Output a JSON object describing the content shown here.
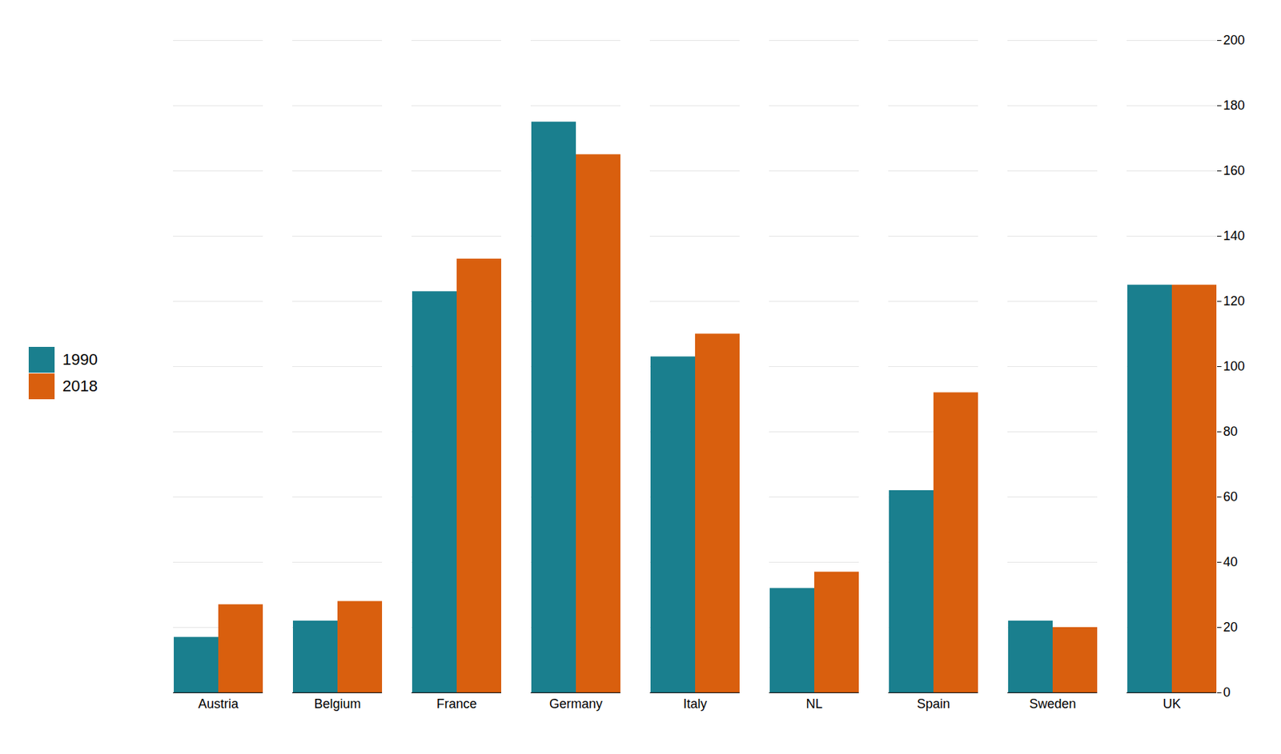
{
  "chart_data": {
    "type": "bar",
    "categories": [
      "Austria",
      "Belgium",
      "France",
      "Germany",
      "Italy",
      "NL",
      "Spain",
      "Sweden",
      "UK"
    ],
    "series": [
      {
        "name": "1990",
        "color": "#1a7f8e",
        "values": [
          17,
          22,
          123,
          175,
          103,
          32,
          62,
          22,
          125
        ]
      },
      {
        "name": "2018",
        "color": "#d95f0e",
        "values": [
          27,
          28,
          133,
          165,
          110,
          37,
          92,
          20,
          125
        ]
      }
    ],
    "ylim": [
      0,
      200
    ],
    "yticks": [
      0,
      20,
      40,
      60,
      80,
      100,
      120,
      140,
      160,
      180,
      200
    ],
    "grid": true,
    "legend": "left"
  }
}
